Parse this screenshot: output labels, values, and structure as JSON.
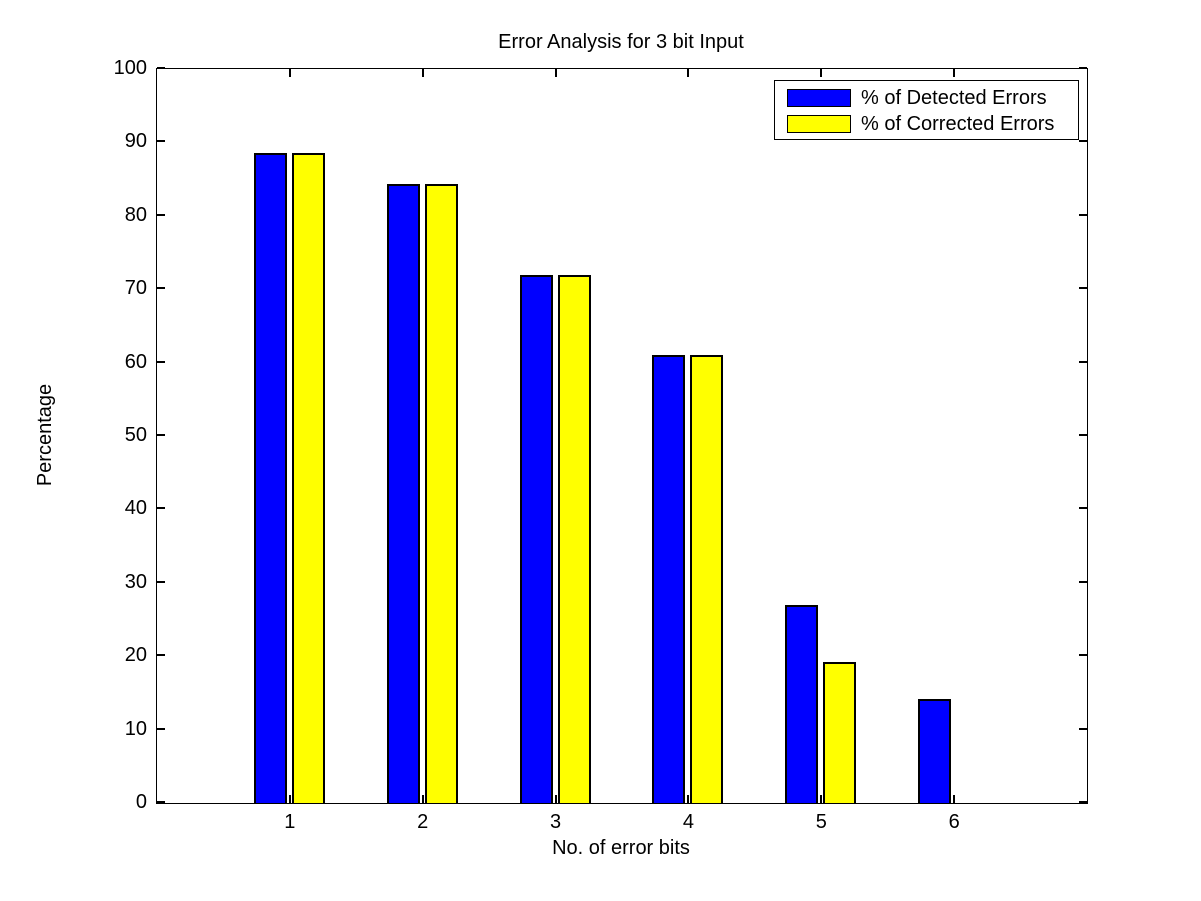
{
  "figure": {
    "background": "#ffffff",
    "axis_color": "#000000"
  },
  "chart_data": {
    "type": "bar",
    "title": "Error Analysis for 3 bit Input",
    "xlabel": "No. of error bits",
    "ylabel": "Percentage",
    "categories": [
      "1",
      "2",
      "3",
      "4",
      "5",
      "6"
    ],
    "series": [
      {
        "name": "% of Detected Errors",
        "color": "#0000ff",
        "values": [
          88.5,
          84.3,
          72,
          61,
          27,
          14.2
        ]
      },
      {
        "name": "% of Corrected Errors",
        "color": "#ffff00",
        "values": [
          88.5,
          84.3,
          72,
          61,
          19.2,
          0
        ]
      }
    ],
    "ylim": [
      0,
      100
    ],
    "yticks": [
      0,
      10,
      20,
      30,
      40,
      50,
      60,
      70,
      80,
      90,
      100
    ],
    "grid": false,
    "legend_position": "top-right",
    "bar_edge_color": "#000000"
  }
}
